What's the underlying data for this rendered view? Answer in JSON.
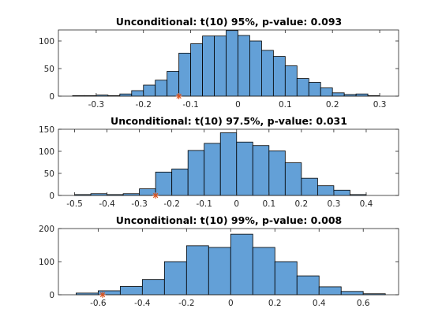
{
  "chart_data": [
    {
      "type": "bar",
      "title": "Unconditional: t(10) 95%, p-value: 0.093",
      "xlim": [
        -0.38,
        0.34
      ],
      "ylim": [
        0,
        120
      ],
      "xticks": [
        -0.3,
        -0.2,
        -0.1,
        0,
        0.1,
        0.2,
        0.3
      ],
      "xtick_labels": [
        "-0.3",
        "-0.2",
        "-0.1",
        "0",
        "0.1",
        "0.2",
        "0.3"
      ],
      "yticks": [
        0,
        50,
        100
      ],
      "ytick_labels": [
        "0",
        "50",
        "100"
      ],
      "bin_edges": [
        -0.35,
        -0.325,
        -0.3,
        -0.275,
        -0.25,
        -0.225,
        -0.2,
        -0.175,
        -0.15,
        -0.125,
        -0.1,
        -0.075,
        -0.05,
        -0.025,
        0,
        0.025,
        0.05,
        0.075,
        0.1,
        0.125,
        0.15,
        0.175,
        0.2,
        0.225,
        0.25,
        0.275,
        0.3
      ],
      "counts": [
        1,
        1,
        2,
        1,
        4,
        10,
        20,
        29,
        45,
        78,
        95,
        109,
        109,
        119,
        110,
        100,
        83,
        72,
        55,
        32,
        25,
        15,
        6,
        3,
        4,
        1
      ],
      "marker_x": -0.125,
      "marker_y": 0
    },
    {
      "type": "bar",
      "title": "Unconditional: t(10) 97.5%, p-value: 0.031",
      "xlim": [
        -0.55,
        0.5
      ],
      "ylim": [
        0,
        150
      ],
      "xticks": [
        -0.5,
        -0.4,
        -0.3,
        -0.2,
        -0.1,
        0,
        0.1,
        0.2,
        0.3,
        0.4
      ],
      "xtick_labels": [
        "-0.5",
        "-0.4",
        "-0.3",
        "-0.2",
        "-0.1",
        "0",
        "0.1",
        "0.2",
        "0.3",
        "0.4"
      ],
      "yticks": [
        0,
        50,
        100,
        150
      ],
      "ytick_labels": [
        "0",
        "50",
        "100",
        "150"
      ],
      "bin_edges": [
        -0.5,
        -0.45,
        -0.4,
        -0.35,
        -0.3,
        -0.25,
        -0.2,
        -0.15,
        -0.1,
        -0.05,
        0,
        0.05,
        0.1,
        0.15,
        0.2,
        0.25,
        0.3,
        0.35,
        0.4
      ],
      "counts": [
        2,
        4,
        2,
        4,
        15,
        53,
        60,
        102,
        118,
        142,
        121,
        113,
        101,
        74,
        39,
        22,
        12,
        2
      ],
      "marker_x": -0.25,
      "marker_y": 0
    },
    {
      "type": "bar",
      "title": "Unconditional: t(10) 99%, p-value: 0.008",
      "xlim": [
        -0.78,
        0.76
      ],
      "ylim": [
        0,
        200
      ],
      "xticks": [
        -0.6,
        -0.4,
        -0.2,
        0,
        0.2,
        0.4,
        0.6
      ],
      "xtick_labels": [
        "-0.6",
        "-0.4",
        "-0.2",
        "0",
        "0.2",
        "0.4",
        "0.6"
      ],
      "yticks": [
        0,
        100,
        200
      ],
      "ytick_labels": [
        "0",
        "100",
        "200"
      ],
      "bin_edges": [
        -0.7,
        -0.6,
        -0.5,
        -0.4,
        -0.3,
        -0.2,
        -0.1,
        0,
        0.1,
        0.2,
        0.3,
        0.4,
        0.5,
        0.6,
        0.7
      ],
      "counts": [
        5,
        12,
        25,
        46,
        100,
        148,
        143,
        183,
        143,
        100,
        57,
        24,
        10,
        3
      ],
      "marker_x": -0.58,
      "marker_y": 0
    }
  ]
}
